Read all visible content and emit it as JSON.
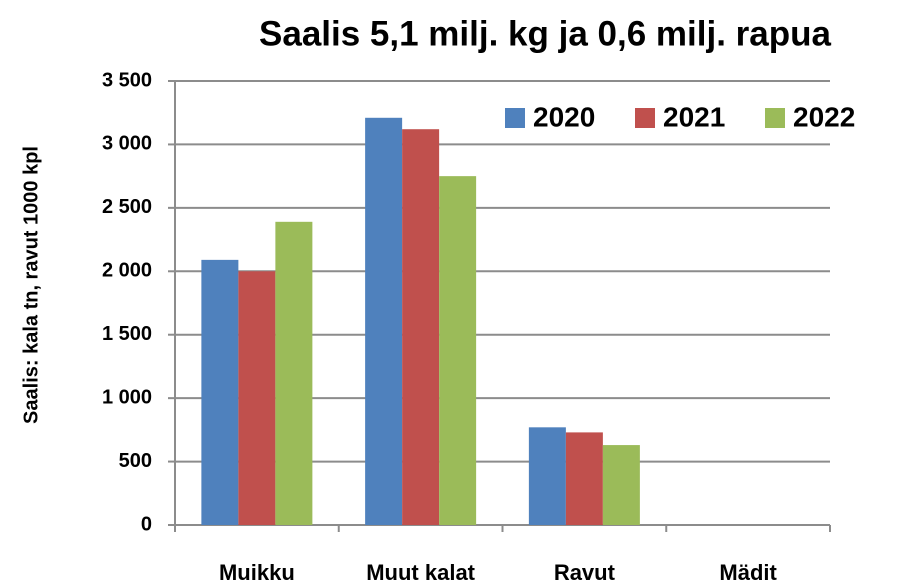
{
  "chart_data": {
    "type": "bar",
    "title": "Saalis 5,1 milj. kg ja 0,6 milj. rapua",
    "y_label": "Saalis: kala tn, ravut 1000 kpl",
    "categories": [
      "Muikku",
      "Muut kalat",
      "Ravut",
      "Mädit"
    ],
    "series": [
      {
        "name": "2020",
        "color": "#4f81bd",
        "values": [
          2090,
          3210,
          770,
          0
        ]
      },
      {
        "name": "2021",
        "color": "#c0504d",
        "values": [
          2000,
          3120,
          730,
          0
        ]
      },
      {
        "name": "2022",
        "color": "#9bbb59",
        "values": [
          2390,
          2750,
          630,
          0
        ]
      }
    ],
    "ylim": [
      0,
      3500
    ],
    "yticks": [
      0,
      500,
      {
        "value": 1000,
        "label": "1 000"
      },
      {
        "value": 1500,
        "label": "1 500"
      },
      {
        "value": 2000,
        "label": "2 000"
      },
      {
        "value": 2500,
        "label": "2 500"
      },
      {
        "value": 3000,
        "label": "3 000"
      },
      {
        "value": 3500,
        "label": "3 500"
      }
    ],
    "grid": true,
    "legend": "top-right"
  }
}
